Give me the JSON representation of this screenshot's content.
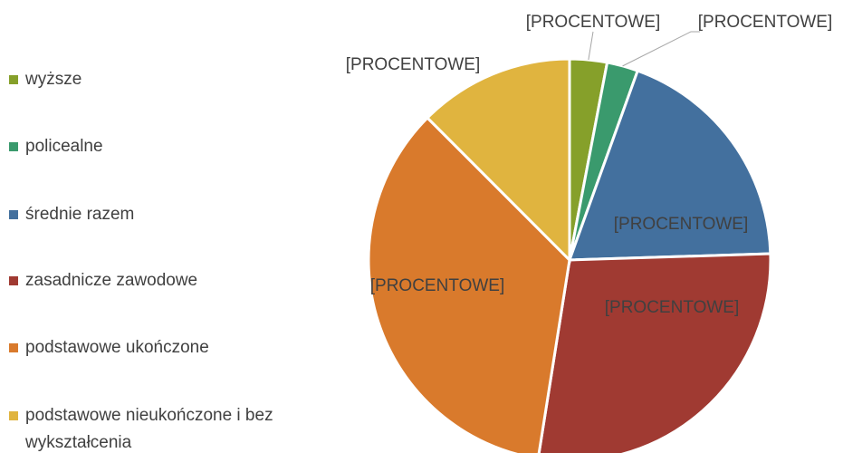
{
  "chart_data": {
    "type": "pie",
    "categories": [
      "wyższe",
      "policealne",
      "średnie razem",
      "zasadnicze zawodowe",
      "podstawowe ukończone",
      "podstawowe nieukończone i bez wykształcenia"
    ],
    "values": [
      3,
      2.5,
      19,
      28,
      35,
      12.5
    ],
    "value_labels": [
      "[PROCENTOWE]",
      "[PROCENTOWE]",
      "[PROCENTOWE]",
      "[PROCENTOWE]",
      "[PROCENTOWE]",
      "[PROCENTOWE]"
    ],
    "colors": [
      "#86a02a",
      "#3a9a6d",
      "#43709e",
      "#a03a32",
      "#d97a2c",
      "#e0b43f"
    ],
    "legend": "left"
  }
}
